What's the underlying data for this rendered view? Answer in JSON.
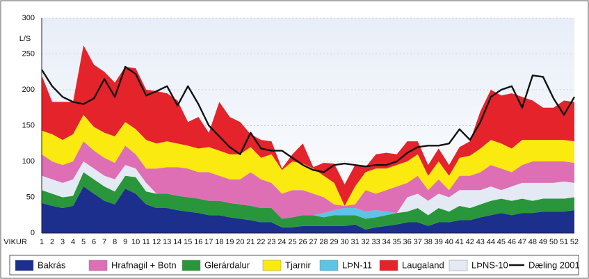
{
  "chart_data": {
    "type": "stacked_area",
    "y_label": "L/S",
    "x_label": "VIKUR",
    "categories": [
      "1",
      "2",
      "3",
      "4",
      "5",
      "6",
      "7",
      "8",
      "9",
      "10",
      "11",
      "12",
      "13",
      "14",
      "15",
      "16",
      "17",
      "18",
      "19",
      "20",
      "21",
      "22",
      "23",
      "24",
      "25",
      "26",
      "27",
      "28",
      "29",
      "30",
      "31",
      "32",
      "33",
      "34",
      "35",
      "36",
      "37",
      "38",
      "39",
      "40",
      "41",
      "42",
      "43",
      "44",
      "45",
      "46",
      "47",
      "48",
      "49",
      "50",
      "51",
      "52"
    ],
    "ylim": [
      0,
      300
    ],
    "yticks": [
      0,
      50,
      100,
      150,
      200,
      250,
      300
    ],
    "grid": true,
    "series": [
      {
        "name": "Bakrás",
        "color": "#1c2f8c",
        "values": [
          42,
          38,
          35,
          38,
          65,
          55,
          45,
          40,
          62,
          55,
          40,
          35,
          35,
          32,
          30,
          28,
          25,
          25,
          22,
          20,
          18,
          15,
          15,
          8,
          8,
          10,
          10,
          10,
          10,
          10,
          12,
          5,
          8,
          10,
          12,
          15,
          15,
          10,
          15,
          15,
          18,
          18,
          22,
          25,
          28,
          25,
          28,
          28,
          30,
          30,
          30,
          32
        ]
      },
      {
        "name": "Hrafnagil + Botn",
        "color": "#de6fb4",
        "values": [
          30,
          25,
          25,
          25,
          28,
          25,
          25,
          23,
          27,
          20,
          20,
          35,
          37,
          40,
          40,
          37,
          40,
          35,
          33,
          35,
          47,
          40,
          35,
          35,
          38,
          35,
          30,
          22,
          8,
          3,
          5,
          30,
          23,
          30,
          37,
          20,
          25,
          15,
          20,
          10,
          20,
          20,
          25,
          30,
          30,
          20,
          25,
          30,
          30,
          30,
          28,
          28
        ]
      },
      {
        "name": "Glerárdalur",
        "color": "#2a963c",
        "values": [
          18,
          17,
          15,
          14,
          20,
          20,
          20,
          18,
          18,
          23,
          18,
          20,
          20,
          20,
          20,
          20,
          20,
          20,
          20,
          20,
          20,
          20,
          20,
          12,
          14,
          15,
          15,
          12,
          15,
          15,
          13,
          15,
          14,
          15,
          16,
          15,
          20,
          15,
          20,
          15,
          20,
          17,
          18,
          20,
          20,
          20,
          20,
          17,
          18,
          18,
          18,
          18
        ]
      },
      {
        "name": "Tjarnir",
        "color": "#fbea10",
        "values": [
          33,
          38,
          35,
          38,
          37,
          33,
          35,
          37,
          33,
          35,
          40,
          35,
          36,
          33,
          32,
          33,
          35,
          35,
          35,
          35,
          35,
          30,
          40,
          33,
          40,
          37,
          35,
          30,
          30,
          0,
          25,
          25,
          35,
          30,
          30,
          30,
          30,
          20,
          25,
          20,
          25,
          28,
          33,
          35,
          35,
          33,
          35,
          30,
          30,
          30,
          30,
          30
        ]
      },
      {
        "name": "LÞN-11",
        "color": "#5ec3e6",
        "values": [
          0,
          0,
          0,
          0,
          0,
          0,
          0,
          0,
          0,
          0,
          0,
          0,
          0,
          0,
          0,
          0,
          0,
          0,
          0,
          0,
          0,
          0,
          0,
          0,
          0,
          0,
          0,
          6,
          7,
          10,
          10,
          10,
          10,
          5,
          0,
          0,
          0,
          0,
          0,
          0,
          0,
          0,
          0,
          0,
          0,
          0,
          0,
          0,
          0,
          0,
          0,
          0
        ]
      },
      {
        "name": "Laugaland",
        "color": "#e4232a",
        "values": [
          77,
          45,
          53,
          45,
          97,
          87,
          85,
          75,
          77,
          85,
          70,
          73,
          67,
          60,
          33,
          44,
          20,
          68,
          52,
          45,
          18,
          25,
          18,
          2,
          10,
          28,
          2,
          18,
          27,
          30,
          30,
          7,
          20,
          22,
          15,
          28,
          18,
          15,
          18,
          15,
          15,
          20,
          52,
          70,
          67,
          77,
          60,
          55,
          45,
          45,
          55,
          55
        ]
      },
      {
        "name": "LÞNS-10",
        "color": "#e4eaf4",
        "values": [
          20,
          20,
          20,
          23,
          15,
          15,
          15,
          17,
          15,
          12,
          12,
          0,
          0,
          0,
          0,
          0,
          0,
          0,
          0,
          0,
          0,
          0,
          0,
          0,
          0,
          0,
          0,
          0,
          0,
          0,
          0,
          0,
          0,
          0,
          0,
          20,
          20,
          20,
          20,
          20,
          22,
          25,
          20,
          20,
          12,
          20,
          22,
          25,
          22,
          22,
          24,
          20
        ]
      }
    ],
    "line": {
      "name": "Dæling 2001",
      "color": "#111111",
      "values": [
        228,
        205,
        190,
        183,
        180,
        188,
        215,
        190,
        232,
        222,
        192,
        198,
        205,
        178,
        205,
        180,
        150,
        135,
        120,
        110,
        140,
        118,
        115,
        115,
        105,
        95,
        88,
        85,
        95,
        97,
        95,
        93,
        95,
        95,
        100,
        112,
        120,
        122,
        122,
        125,
        145,
        130,
        155,
        190,
        200,
        205,
        175,
        220,
        218,
        188,
        165,
        190
      ]
    }
  }
}
